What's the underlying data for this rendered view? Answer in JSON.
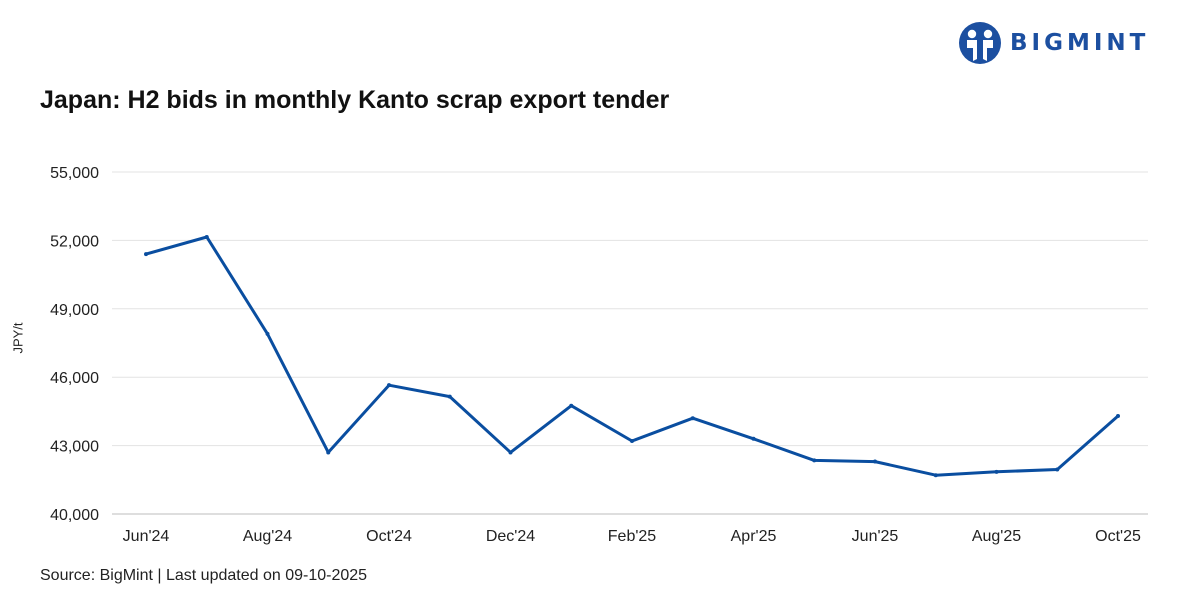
{
  "brand": {
    "name": "BIGMINT",
    "color": "#1c4fa0",
    "icon": "bigmint-logo-icon"
  },
  "chart_data": {
    "type": "line",
    "title": "Japan: H2 bids in monthly Kanto scrap export tender",
    "xlabel": "",
    "ylabel": "JPY/t",
    "x": [
      "Jun'24",
      "Jul'24",
      "Aug'24",
      "Sep'24",
      "Oct'24",
      "Nov'24",
      "Dec'24",
      "Jan'25",
      "Feb'25",
      "Mar'25",
      "Apr'25",
      "May'25",
      "Jun'25",
      "Jul'25",
      "Aug'25",
      "Sep'25",
      "Oct'25"
    ],
    "x_tick_labels": [
      "Jun'24",
      "Aug'24",
      "Oct'24",
      "Dec'24",
      "Feb'25",
      "Apr'25",
      "Jun'25",
      "Aug'25",
      "Oct'25"
    ],
    "y_ticks": [
      "40,000",
      "43,000",
      "46,000",
      "49,000",
      "52,000",
      "55,000"
    ],
    "ylim": [
      40000,
      55000
    ],
    "grid": true,
    "series": [
      {
        "values": [
          51400,
          52150,
          47900,
          42700,
          45650,
          45150,
          42700,
          44750,
          43200,
          44200,
          43300,
          42350,
          42300,
          41700,
          41850,
          41950,
          44300
        ],
        "color": "#0a4ea0"
      }
    ]
  },
  "footer": {
    "source": "Source: BigMint | Last updated on 09-10-2025"
  }
}
